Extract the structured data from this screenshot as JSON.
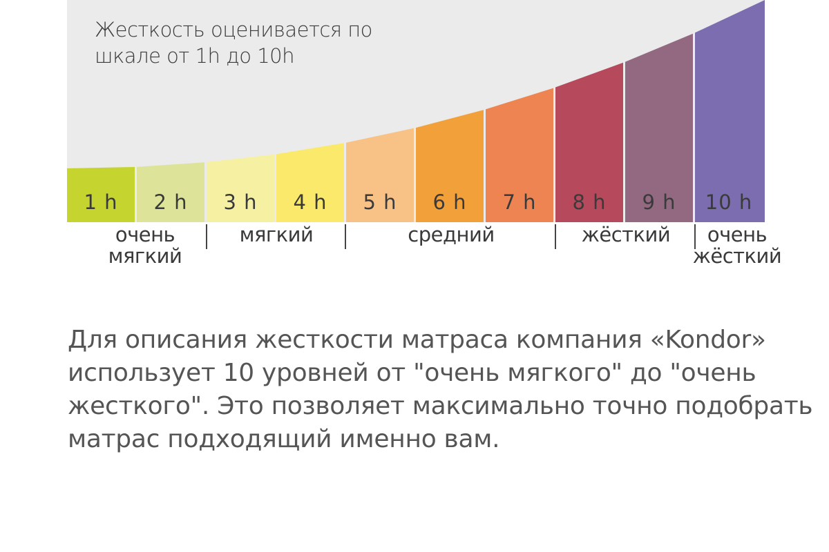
{
  "scale": {
    "title_lines": [
      "Жесткость оценивается по",
      "шкале от 1h до 10h"
    ],
    "levels": [
      {
        "label": "1 h",
        "color": "#c5d42e"
      },
      {
        "label": "2 h",
        "color": "#dde49a"
      },
      {
        "label": "3 h",
        "color": "#f6f0a3"
      },
      {
        "label": "4 h",
        "color": "#fbe96b"
      },
      {
        "label": "5 h",
        "color": "#f8c185"
      },
      {
        "label": "6 h",
        "color": "#f2a03a"
      },
      {
        "label": "7 h",
        "color": "#ee8452"
      },
      {
        "label": "8 h",
        "color": "#b64a5c"
      },
      {
        "label": "9 h",
        "color": "#936981"
      },
      {
        "label": "10 h",
        "color": "#7b6db0"
      }
    ],
    "categories": [
      {
        "lines": [
          "очень",
          "мягкий"
        ]
      },
      {
        "lines": [
          "мягкий"
        ]
      },
      {
        "lines": [
          "средний"
        ]
      },
      {
        "lines": [
          "жёсткий"
        ]
      },
      {
        "lines": [
          "очень",
          "жёсткий"
        ]
      }
    ],
    "background_color": "#ebebeb"
  },
  "description": {
    "lines": [
      "Для описания жесткости матраса компания «Kondor»",
      "использует  10  уровней  от  \"очень мягкого\" до \"очень",
      "жесткого\". Это позволяет максимально точно подобрать",
      "матрас подходящий именно вам."
    ]
  }
}
